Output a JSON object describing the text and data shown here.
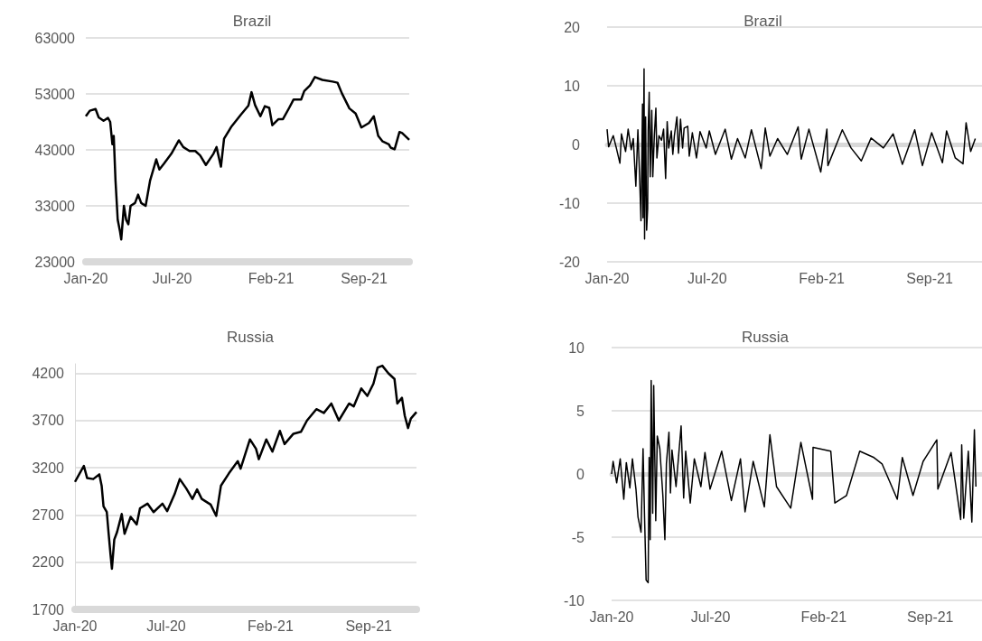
{
  "chart_data": [
    {
      "type": "line",
      "title": "Brazil",
      "xlim": [
        "2020-01-01",
        "2021-12-31"
      ],
      "xticks": [
        {
          "value": "2020-01-01",
          "label": "Jan-20"
        },
        {
          "value": "2020-07-14",
          "label": "Jul-20"
        },
        {
          "value": "2021-02-22",
          "label": "Feb-21"
        },
        {
          "value": "2021-09-20",
          "label": "Sep-21"
        }
      ],
      "ylim": [
        23000,
        63000
      ],
      "yticks": [
        23000,
        33000,
        43000,
        53000,
        63000
      ],
      "grid": "y",
      "marker": "none",
      "x": [
        "2020-01-01",
        "2020-01-10",
        "2020-01-23",
        "2020-01-30",
        "2020-02-10",
        "2020-02-20",
        "2020-02-25",
        "2020-03-01",
        "2020-03-04",
        "2020-03-08",
        "2020-03-13",
        "2020-03-18",
        "2020-03-21",
        "2020-03-27",
        "2020-04-01",
        "2020-04-06",
        "2020-04-11",
        "2020-04-21",
        "2020-04-28",
        "2020-05-05",
        "2020-05-15",
        "2020-05-25",
        "2020-06-08",
        "2020-06-15",
        "2020-06-25",
        "2020-07-12",
        "2020-07-29",
        "2020-08-08",
        "2020-08-22",
        "2020-09-04",
        "2020-09-15",
        "2020-09-28",
        "2020-10-15",
        "2020-10-22",
        "2020-11-01",
        "2020-11-08",
        "2020-11-25",
        "2020-12-16",
        "2021-01-02",
        "2021-01-09",
        "2021-01-17",
        "2021-01-29",
        "2021-02-08",
        "2021-02-18",
        "2021-02-25",
        "2021-03-11",
        "2021-03-21",
        "2021-04-04",
        "2021-04-14",
        "2021-05-01",
        "2021-05-08",
        "2021-05-21",
        "2021-06-01",
        "2021-06-18",
        "2021-07-11",
        "2021-07-22",
        "2021-08-01",
        "2021-08-18",
        "2021-09-01",
        "2021-09-14",
        "2021-10-01",
        "2021-10-12",
        "2021-10-22",
        "2021-11-01",
        "2021-11-15",
        "2021-11-19",
        "2021-11-28",
        "2021-12-09",
        "2021-12-15",
        "2021-12-31"
      ],
      "series": [
        {
          "color": "#000000",
          "values": [
            49000,
            50000,
            50300,
            48800,
            48200,
            48700,
            48000,
            44000,
            45500,
            37500,
            30500,
            28500,
            27000,
            33000,
            30500,
            29700,
            33000,
            33500,
            35000,
            33500,
            33000,
            37500,
            41300,
            39500,
            40500,
            42300,
            44700,
            43500,
            42800,
            42800,
            42000,
            40300,
            42300,
            43500,
            40000,
            45000,
            47200,
            49300,
            50900,
            53300,
            51000,
            49000,
            50800,
            50500,
            47400,
            48500,
            48500,
            50500,
            52000,
            52000,
            53500,
            54500,
            56000,
            55500,
            55200,
            55000,
            53100,
            50400,
            49500,
            47000,
            47800,
            49000,
            45500,
            44500,
            44000,
            43400,
            43100,
            46200,
            46000,
            44800
          ]
        }
      ]
    },
    {
      "type": "line",
      "title": "Brazil",
      "xlim": [
        "2020-01-01",
        "2021-12-31"
      ],
      "xticks": [
        {
          "value": "2020-01-01",
          "label": "Jan-20"
        },
        {
          "value": "2020-07-14",
          "label": "Jul-20"
        },
        {
          "value": "2021-02-22",
          "label": "Feb-21"
        },
        {
          "value": "2021-09-20",
          "label": "Sep-21"
        }
      ],
      "ylim": [
        -20,
        20
      ],
      "yticks": [
        -20,
        -10,
        0,
        10,
        20
      ],
      "grid": "y",
      "marker": "none",
      "x": [
        "2020-01-01",
        "2020-01-04",
        "2020-01-13",
        "2020-01-19",
        "2020-01-26",
        "2020-01-29",
        "2020-02-06",
        "2020-02-11",
        "2020-02-17",
        "2020-02-21",
        "2020-02-26",
        "2020-03-01",
        "2020-03-04",
        "2020-03-07",
        "2020-03-10",
        "2020-03-11",
        "2020-03-13",
        "2020-03-14",
        "2020-03-16",
        "2020-03-18",
        "2020-03-20",
        "2020-03-21",
        "2020-03-23",
        "2020-03-25",
        "2020-03-28",
        "2020-03-30",
        "2020-04-02",
        "2020-04-05",
        "2020-04-07",
        "2020-04-11",
        "2020-04-16",
        "2020-04-20",
        "2020-04-24",
        "2020-04-27",
        "2020-04-30",
        "2020-05-05",
        "2020-05-08",
        "2020-05-11",
        "2020-05-16",
        "2020-05-19",
        "2020-05-23",
        "2020-05-27",
        "2020-05-30",
        "2020-06-06",
        "2020-06-09",
        "2020-06-15",
        "2020-06-23",
        "2020-06-30",
        "2020-07-12",
        "2020-07-18",
        "2020-07-30",
        "2020-08-18",
        "2020-08-30",
        "2020-09-11",
        "2020-09-26",
        "2020-10-08",
        "2020-10-27",
        "2020-11-04",
        "2020-11-13",
        "2020-11-28",
        "2020-12-17",
        "2021-01-07",
        "2021-01-13",
        "2021-01-28",
        "2021-02-20",
        "2021-03-04",
        "2021-03-06",
        "2021-04-03",
        "2021-04-20",
        "2021-05-10",
        "2021-05-29",
        "2021-06-22",
        "2021-07-11",
        "2021-07-29",
        "2021-08-22",
        "2021-09-06",
        "2021-09-24",
        "2021-10-15",
        "2021-10-23",
        "2021-11-09",
        "2021-11-24",
        "2021-11-30",
        "2021-12-09",
        "2021-12-18"
      ],
      "series": [
        {
          "color": "#000000",
          "values": [
            2.6,
            -0.4,
            1.5,
            -0.6,
            -3.2,
            1.8,
            -1.2,
            2.6,
            -0.9,
            1.0,
            -7.1,
            2.5,
            -4.7,
            -13.0,
            6.9,
            -12.5,
            12.9,
            -16.1,
            4.7,
            -14.6,
            -10.9,
            2.3,
            8.9,
            -5.5,
            5.8,
            -5.5,
            1.5,
            6.2,
            -2.3,
            1.5,
            0.7,
            2.6,
            -5.8,
            3.9,
            -0.6,
            2.3,
            -1.7,
            1.5,
            4.7,
            -1.5,
            4.3,
            -0.6,
            2.8,
            3.1,
            -2.0,
            2.0,
            -2.3,
            2.2,
            -0.6,
            2.3,
            -1.7,
            2.6,
            -2.5,
            1.0,
            -2.3,
            2.5,
            -4.1,
            2.8,
            -2.0,
            1.0,
            -1.7,
            3.0,
            -2.5,
            2.6,
            -4.7,
            2.6,
            -3.6,
            2.5,
            -0.6,
            -2.8,
            1.1,
            -0.6,
            1.8,
            -3.4,
            2.5,
            -3.6,
            2.0,
            -3.1,
            2.3,
            -2.3,
            -3.3,
            3.7,
            -1.2,
            1.0
          ]
        }
      ]
    },
    {
      "type": "line",
      "title": "Russia",
      "xlim": [
        "2020-01-01",
        "2021-12-31"
      ],
      "xticks": [
        {
          "value": "2020-01-01",
          "label": "Jan-20"
        },
        {
          "value": "2020-07-14",
          "label": "Jul-20"
        },
        {
          "value": "2021-02-22",
          "label": "Feb-21"
        },
        {
          "value": "2021-09-20",
          "label": "Sep-21"
        }
      ],
      "ylim": [
        1700,
        4300
      ],
      "yticks": [
        1700,
        2200,
        2700,
        3200,
        3700,
        4200
      ],
      "grid": "y",
      "marker": "none",
      "x": [
        "2020-01-01",
        "2020-01-11",
        "2020-01-20",
        "2020-01-27",
        "2020-02-09",
        "2020-02-22",
        "2020-02-27",
        "2020-03-02",
        "2020-03-09",
        "2020-03-13",
        "2020-03-17",
        "2020-03-20",
        "2020-03-25",
        "2020-03-31",
        "2020-04-10",
        "2020-04-16",
        "2020-04-29",
        "2020-05-12",
        "2020-05-19",
        "2020-06-04",
        "2020-06-17",
        "2020-07-06",
        "2020-07-16",
        "2020-08-01",
        "2020-08-12",
        "2020-08-26",
        "2020-09-08",
        "2020-09-18",
        "2020-09-28",
        "2020-10-17",
        "2020-10-29",
        "2020-11-08",
        "2020-11-25",
        "2020-12-14",
        "2020-12-20",
        "2021-01-09",
        "2021-01-22",
        "2021-01-28",
        "2021-02-13",
        "2021-02-26",
        "2021-03-14",
        "2021-03-24",
        "2021-04-12",
        "2021-04-28",
        "2021-05-11",
        "2021-05-31",
        "2021-06-16",
        "2021-07-02",
        "2021-07-18",
        "2021-08-09",
        "2021-08-19",
        "2021-09-04",
        "2021-09-17",
        "2021-09-30",
        "2021-10-09",
        "2021-10-19",
        "2021-11-01",
        "2021-11-14",
        "2021-11-20",
        "2021-11-30",
        "2021-12-06",
        "2021-12-13",
        "2021-12-19",
        "2021-12-31"
      ],
      "series": [
        {
          "color": "#000000",
          "values": [
            3050,
            3140,
            3220,
            3090,
            3080,
            3130,
            3010,
            2790,
            2730,
            2500,
            2280,
            2130,
            2440,
            2520,
            2710,
            2500,
            2680,
            2600,
            2770,
            2820,
            2730,
            2820,
            2740,
            2920,
            3080,
            2980,
            2870,
            2970,
            2870,
            2810,
            2690,
            3010,
            3140,
            3270,
            3190,
            3500,
            3400,
            3290,
            3500,
            3370,
            3590,
            3450,
            3560,
            3580,
            3700,
            3820,
            3780,
            3880,
            3700,
            3880,
            3850,
            4040,
            3960,
            4090,
            4260,
            4280,
            4200,
            4140,
            3880,
            3940,
            3750,
            3620,
            3720,
            3790
          ]
        }
      ]
    },
    {
      "type": "line",
      "title": "Russia",
      "xlim": [
        "2020-01-01",
        "2021-12-31"
      ],
      "xticks": [
        {
          "value": "2020-01-01",
          "label": "Jan-20"
        },
        {
          "value": "2020-07-14",
          "label": "Jul-20"
        },
        {
          "value": "2021-02-22",
          "label": "Feb-21"
        },
        {
          "value": "2021-09-20",
          "label": "Sep-21"
        }
      ],
      "ylim": [
        -10,
        10
      ],
      "yticks": [
        -10,
        -5,
        0,
        5,
        10
      ],
      "grid": "y",
      "marker": "none",
      "x": [
        "2020-01-01",
        "2020-01-04",
        "2020-01-11",
        "2020-01-18",
        "2020-01-25",
        "2020-01-30",
        "2020-02-06",
        "2020-02-11",
        "2020-02-18",
        "2020-02-22",
        "2020-02-28",
        "2020-03-03",
        "2020-03-06",
        "2020-03-09",
        "2020-03-13",
        "2020-03-15",
        "2020-03-17",
        "2020-03-19",
        "2020-03-22",
        "2020-03-24",
        "2020-03-28",
        "2020-03-31",
        "2020-04-05",
        "2020-04-11",
        "2020-04-15",
        "2020-04-18",
        "2020-04-23",
        "2020-04-26",
        "2020-04-29",
        "2020-05-07",
        "2020-05-17",
        "2020-05-22",
        "2020-05-26",
        "2020-06-04",
        "2020-06-12",
        "2020-06-25",
        "2020-07-03",
        "2020-07-13",
        "2020-08-05",
        "2020-08-24",
        "2020-09-11",
        "2020-09-20",
        "2020-10-06",
        "2020-10-28",
        "2020-11-08",
        "2020-11-21",
        "2020-12-19",
        "2021-01-08",
        "2021-01-31",
        "2021-02-01",
        "2021-03-08",
        "2021-03-16",
        "2021-04-08",
        "2021-05-04",
        "2021-06-01",
        "2021-06-17",
        "2021-07-17",
        "2021-07-27",
        "2021-08-17",
        "2021-09-06",
        "2021-10-03",
        "2021-10-05",
        "2021-10-31",
        "2021-11-19",
        "2021-11-21",
        "2021-11-25",
        "2021-12-04",
        "2021-12-11",
        "2021-12-16",
        "2021-12-19"
      ],
      "series": [
        {
          "color": "#000000",
          "values": [
            0,
            1.0,
            -0.7,
            1.2,
            -2.0,
            0.9,
            -1.1,
            1.2,
            -1.2,
            -3.4,
            -4.6,
            2.0,
            -3.5,
            -8.4,
            -8.6,
            1.3,
            -5.2,
            7.4,
            -3.1,
            7.0,
            -3.7,
            3.0,
            2.0,
            -1.7,
            -5.2,
            0.8,
            3.3,
            -1.5,
            1.9,
            -1.0,
            3.8,
            -1.9,
            1.8,
            -2.3,
            1.2,
            -1.0,
            1.7,
            -1.2,
            1.8,
            -2.1,
            1.2,
            -3.0,
            1.0,
            -2.6,
            3.1,
            -1.0,
            -2.7,
            2.5,
            -2.0,
            2.1,
            1.8,
            -2.3,
            -1.7,
            1.8,
            1.3,
            0.8,
            -2.0,
            1.3,
            -1.7,
            1.0,
            2.7,
            -1.2,
            1.7,
            -3.6,
            2.3,
            -3.5,
            1.8,
            -3.8,
            3.5,
            -1.0
          ]
        }
      ]
    }
  ]
}
